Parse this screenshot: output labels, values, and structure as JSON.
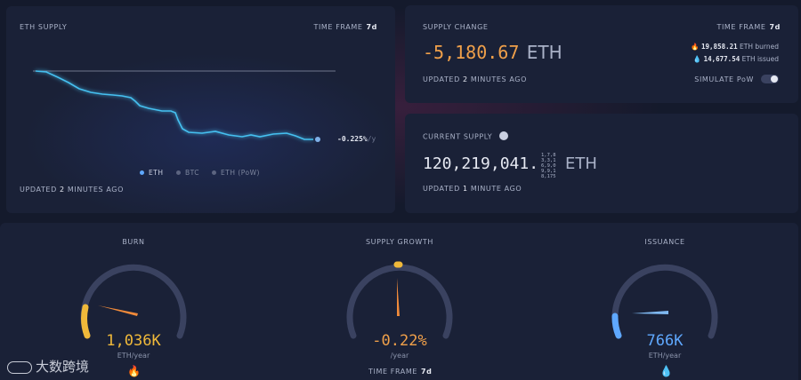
{
  "eth_supply": {
    "title": "ETH SUPPLY",
    "time_frame_label": "TIME FRAME",
    "time_frame_value": "7d",
    "trend_label": "-0.225%",
    "trend_unit": "/y",
    "legend": [
      {
        "label": "ETH",
        "color": "#5fa8ff"
      },
      {
        "label": "BTC",
        "color": "#5c6480"
      },
      {
        "label": "ETH (PoW)",
        "color": "#5c6480"
      }
    ],
    "updated_prefix": "UPDATED",
    "updated_value": "2",
    "updated_suffix": "MINUTES AGO"
  },
  "supply_change": {
    "title": "SUPPLY CHANGE",
    "time_frame_label": "TIME FRAME",
    "time_frame_value": "7d",
    "value": "-5,180.67",
    "unit": "ETH",
    "burned_value": "19,858.21",
    "burned_label": "ETH burned",
    "issued_value": "14,677.54",
    "issued_label": "ETH issued",
    "simulate_label": "SIMULATE PoW",
    "simulate_on": false,
    "updated_prefix": "UPDATED",
    "updated_value": "2",
    "updated_suffix": "MINUTES AGO"
  },
  "current_supply": {
    "title": "CURRENT SUPPLY",
    "value": "120,219,041.",
    "decimals": [
      "1,7,8",
      "3,3,1",
      "6,9,0",
      "9,9,1",
      "8,175"
    ],
    "unit": "ETH",
    "updated_prefix": "UPDATED",
    "updated_value": "1",
    "updated_suffix": "MINUTE AGO"
  },
  "gauges": {
    "burn": {
      "title": "BURN",
      "value": "1,036K",
      "unit": "ETH/year",
      "level": 0.18,
      "color": "#f0b93a",
      "icon": "fire-icon"
    },
    "supply_growth": {
      "title": "SUPPLY GROWTH",
      "value": "-0.22%",
      "unit": "/year",
      "level": 0.5,
      "color": "#f0a04a",
      "time_frame_label": "TIME FRAME",
      "time_frame_value": "7d"
    },
    "issuance": {
      "title": "ISSUANCE",
      "value": "766K",
      "unit": "ETH/year",
      "level": 0.25,
      "color": "#5fa8ff",
      "icon": "droplet-icon"
    }
  },
  "watermark": {
    "text": "大数跨境"
  }
}
